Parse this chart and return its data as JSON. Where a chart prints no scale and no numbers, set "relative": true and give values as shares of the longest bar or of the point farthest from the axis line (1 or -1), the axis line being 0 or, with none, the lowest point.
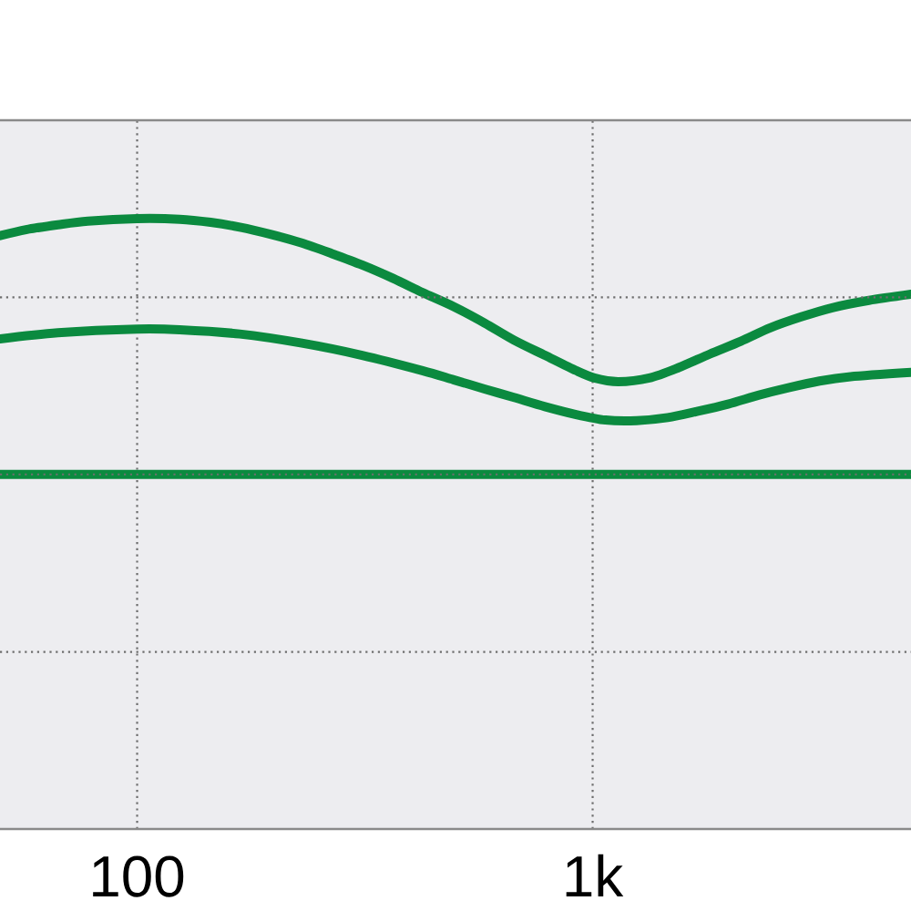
{
  "chart_data": {
    "type": "line",
    "relative": true,
    "log": "x",
    "xlim": [
      50,
      5000
    ],
    "xticks": [
      {
        "value": 100,
        "label": "100"
      },
      {
        "value": 1000,
        "label": "1k"
      }
    ],
    "grid": "x",
    "marker": "none",
    "line_style": "solid",
    "ref_lines": [
      {
        "axis": "y",
        "value": 0.29,
        "color": "#6e6e6e",
        "line_style": "dotted"
      },
      {
        "axis": "y",
        "value": 0.581,
        "color": "#6e6e6e",
        "line_style": "dotted"
      },
      {
        "axis": "y",
        "value": 0.871,
        "color": "#6e6e6e",
        "line_style": "dotted"
      }
    ],
    "series": [
      {
        "color": "#0b8a3f",
        "x": [
          50,
          57,
          67,
          78,
          100,
          124,
          145,
          168,
          197,
          230,
          267,
          312,
          365,
          423,
          495,
          579,
          672,
          786,
          920,
          1009,
          1138,
          1332,
          1545,
          1807,
          2115,
          2453,
          2870,
          3358,
          4041,
          5000
        ],
        "values": [
          0.972,
          0.982,
          0.99,
          0.996,
          1.0,
          0.999,
          0.994,
          0.986,
          0.974,
          0.96,
          0.943,
          0.924,
          0.902,
          0.879,
          0.856,
          0.829,
          0.801,
          0.776,
          0.751,
          0.739,
          0.733,
          0.739,
          0.756,
          0.778,
          0.799,
          0.821,
          0.839,
          0.854,
          0.866,
          0.876
        ]
      },
      {
        "color": "#0b8a3f",
        "x": [
          50,
          67,
          100,
          124,
          168,
          230,
          312,
          423,
          495,
          579,
          672,
          786,
          920,
          1067,
          1249,
          1461,
          1694,
          1983,
          2320,
          2690,
          3148,
          3684,
          5000
        ],
        "values": [
          0.803,
          0.813,
          0.819,
          0.818,
          0.811,
          0.796,
          0.776,
          0.751,
          0.736,
          0.721,
          0.707,
          0.692,
          0.679,
          0.67,
          0.669,
          0.674,
          0.684,
          0.696,
          0.711,
          0.723,
          0.734,
          0.741,
          0.748
        ]
      },
      {
        "color": "#0b8a3f",
        "x": [
          50,
          5000
        ],
        "values": [
          0.581,
          0.581
        ]
      }
    ]
  }
}
